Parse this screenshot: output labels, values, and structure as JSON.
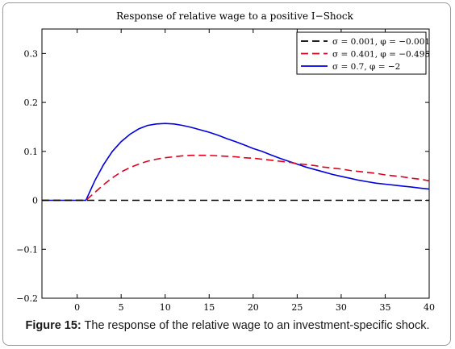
{
  "chart_data": {
    "type": "line",
    "title": "Response of relative wage to a positive I−Shock",
    "xlabel": "",
    "ylabel": "",
    "xlim": [
      -4,
      40
    ],
    "ylim": [
      -0.2,
      0.35
    ],
    "xticks": [
      0,
      5,
      10,
      15,
      20,
      25,
      30,
      35,
      40
    ],
    "xtick_labels": [
      "0",
      "5",
      "10",
      "15",
      "20",
      "25",
      "30",
      "35",
      "40"
    ],
    "yticks": [
      -0.2,
      -0.1,
      0,
      0.1,
      0.2,
      0.3
    ],
    "ytick_labels": [
      "−0.2",
      "−0.1",
      "0",
      "0.1",
      "0.2",
      "0.3"
    ],
    "grid": false,
    "legend_position": "top-right",
    "series": [
      {
        "name": "σ = 0.001, φ = −0.001",
        "color": "#000000",
        "dash": "dashed",
        "x": [
          -4,
          0,
          10,
          20,
          30,
          40
        ],
        "y": [
          0,
          0,
          0,
          0,
          0,
          0
        ]
      },
      {
        "name": "σ = 0.401, φ = −0.495",
        "color": "#e0001b",
        "dash": "dashed",
        "x": [
          -4,
          0,
          1,
          2,
          3,
          4,
          5,
          6,
          7,
          8,
          9,
          10,
          11,
          12,
          13,
          14,
          15,
          16,
          17,
          18,
          19,
          20,
          21,
          22,
          23,
          24,
          25,
          26,
          27,
          28,
          29,
          30,
          31,
          32,
          33,
          34,
          35,
          36,
          37,
          38,
          39,
          40
        ],
        "y": [
          0,
          0,
          0.0,
          0.016,
          0.032,
          0.046,
          0.058,
          0.067,
          0.074,
          0.08,
          0.084,
          0.087,
          0.089,
          0.091,
          0.092,
          0.092,
          0.092,
          0.091,
          0.09,
          0.089,
          0.087,
          0.086,
          0.084,
          0.082,
          0.08,
          0.078,
          0.075,
          0.073,
          0.071,
          0.068,
          0.066,
          0.064,
          0.061,
          0.059,
          0.057,
          0.055,
          0.052,
          0.05,
          0.048,
          0.045,
          0.043,
          0.04
        ]
      },
      {
        "name": "σ = 0.7,      φ = −2",
        "color": "#0000e0",
        "dash": "solid",
        "x": [
          -4,
          0,
          1,
          2,
          3,
          4,
          5,
          6,
          7,
          8,
          9,
          10,
          11,
          12,
          13,
          14,
          15,
          16,
          17,
          18,
          19,
          20,
          21,
          22,
          23,
          24,
          25,
          26,
          27,
          28,
          29,
          30,
          31,
          32,
          33,
          34,
          35,
          36,
          37,
          38,
          39,
          40
        ],
        "y": [
          0,
          0,
          0.0,
          0.04,
          0.073,
          0.1,
          0.12,
          0.135,
          0.146,
          0.153,
          0.156,
          0.157,
          0.156,
          0.153,
          0.149,
          0.144,
          0.139,
          0.133,
          0.126,
          0.12,
          0.113,
          0.106,
          0.1,
          0.093,
          0.086,
          0.08,
          0.074,
          0.068,
          0.063,
          0.058,
          0.053,
          0.049,
          0.045,
          0.041,
          0.038,
          0.035,
          0.033,
          0.031,
          0.029,
          0.027,
          0.025,
          0.023
        ]
      }
    ]
  },
  "caption": {
    "label": "Figure 15:",
    "text": " The response of the relative wage to an investment-specific shock."
  }
}
